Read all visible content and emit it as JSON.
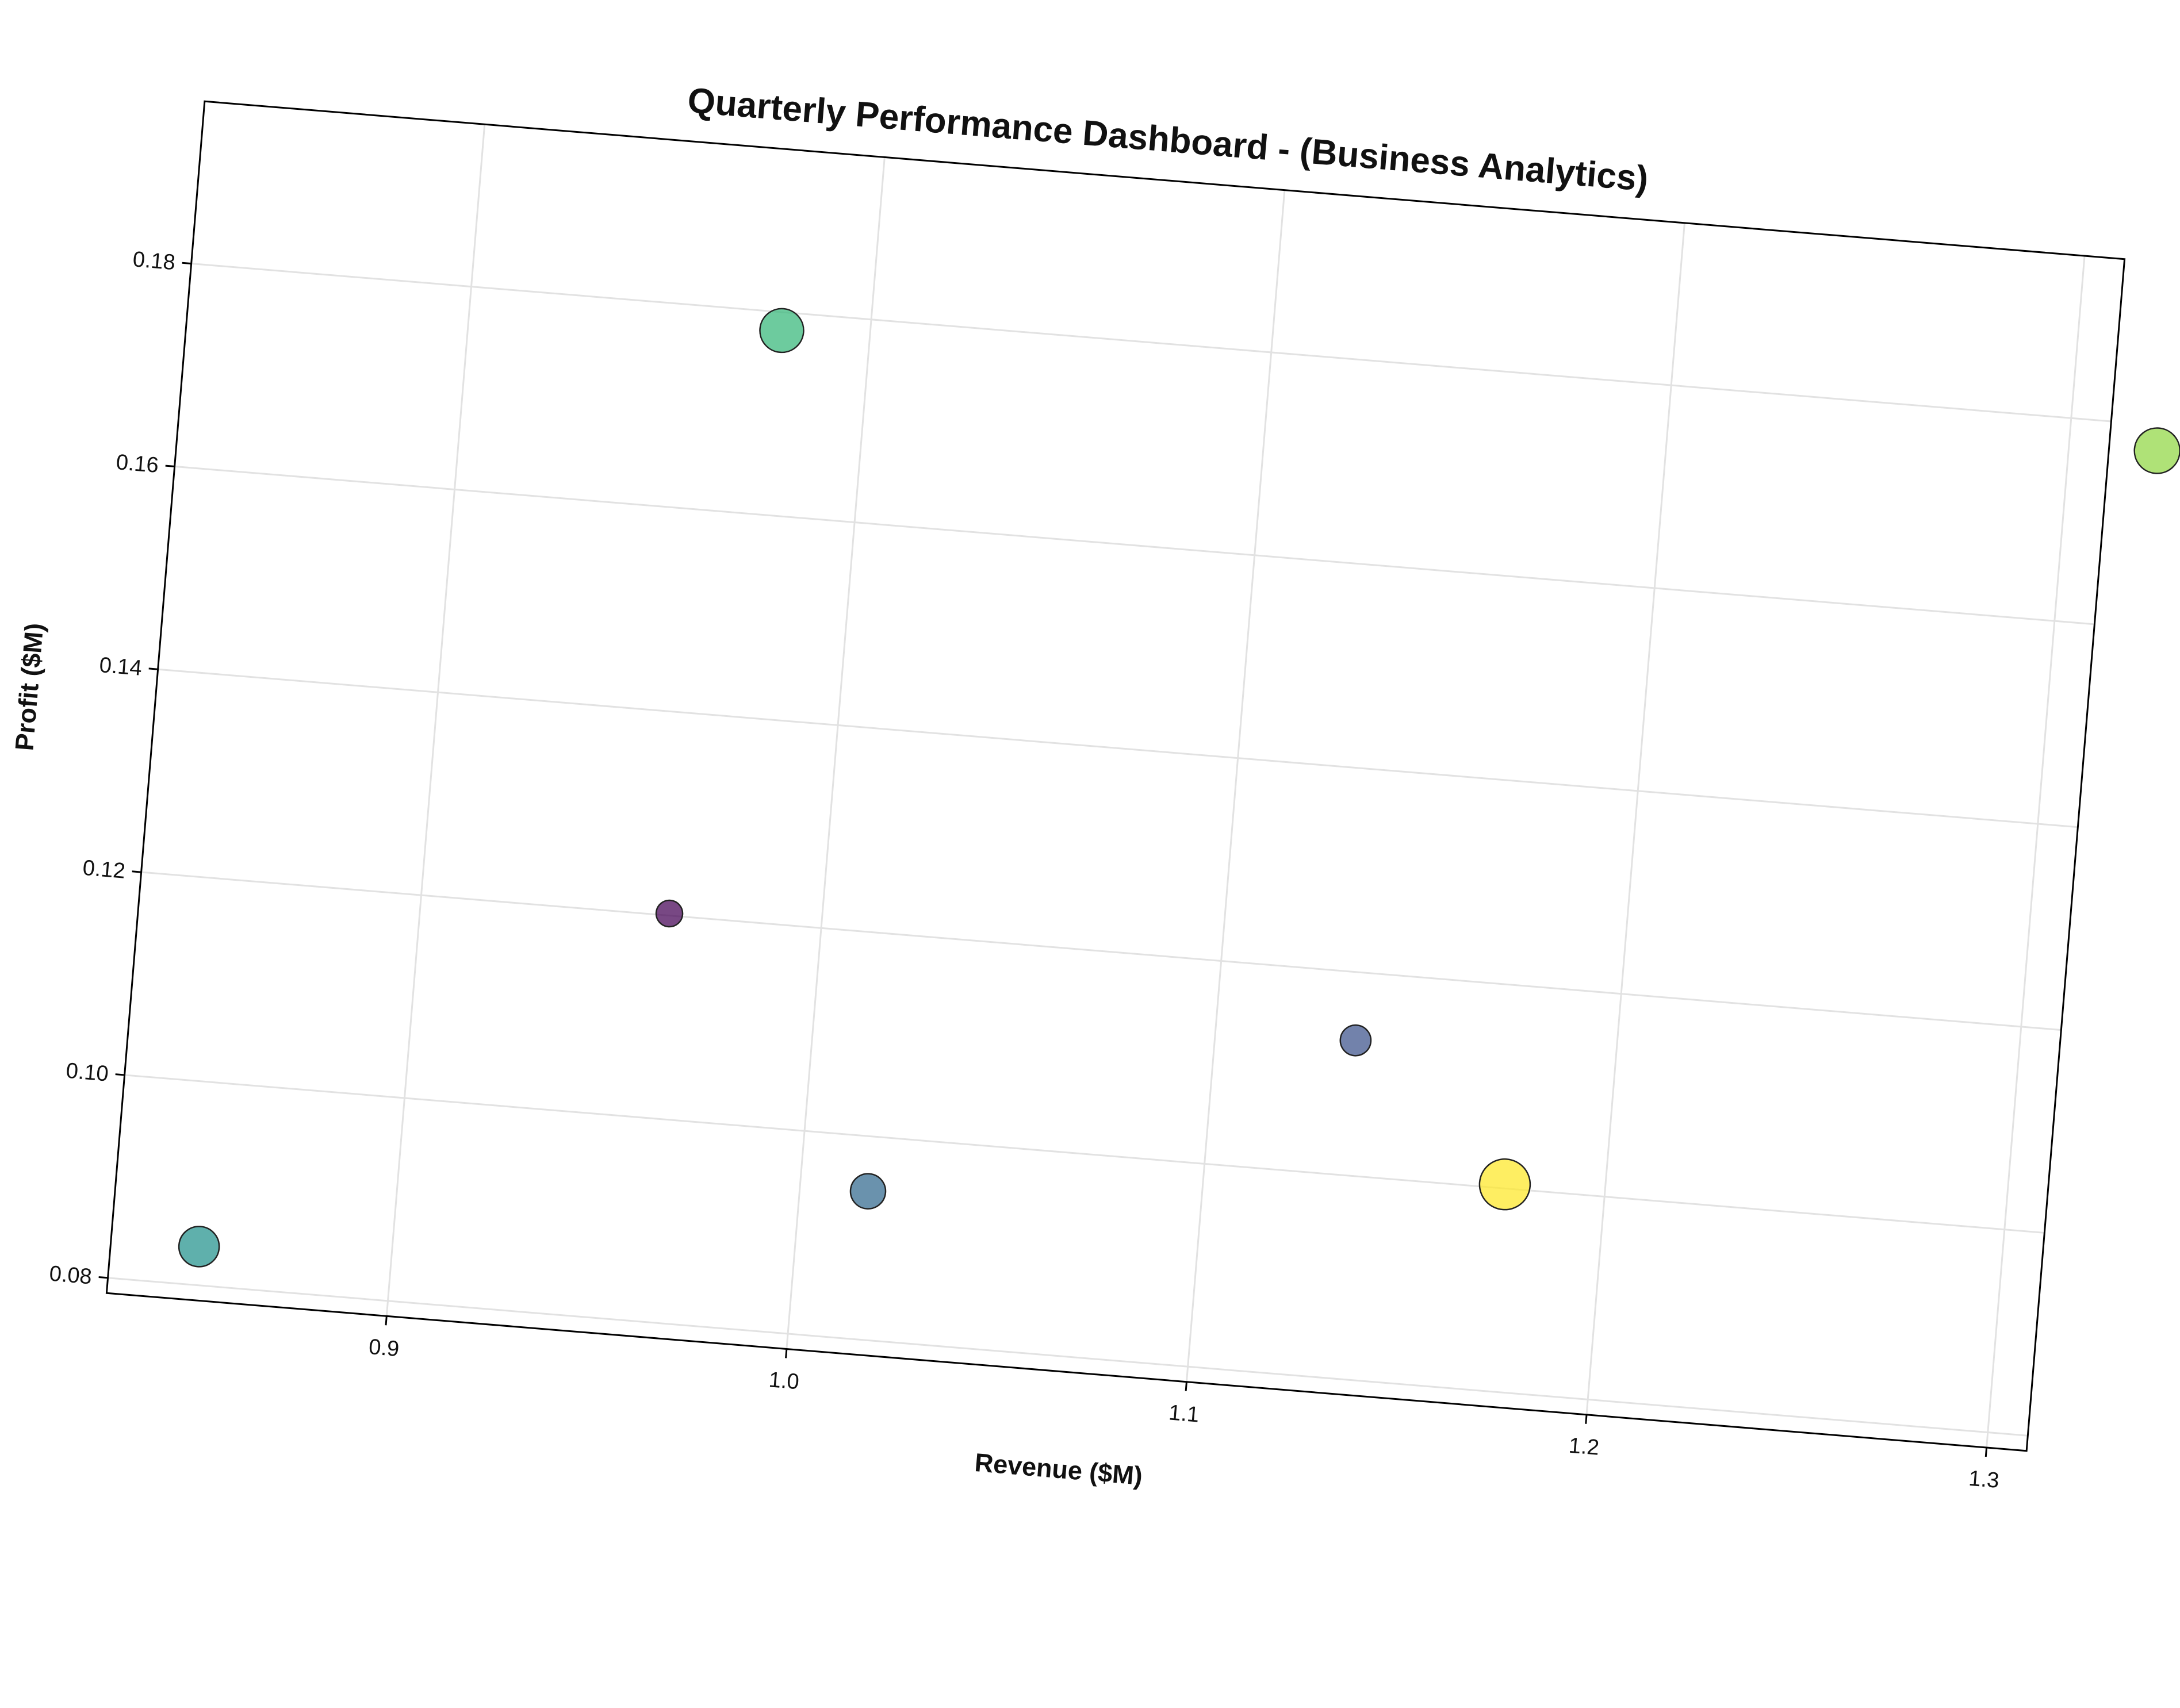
{
  "chart_data": {
    "type": "scatter",
    "title": "Quarterly Performance Dashboard - (Business Analytics)",
    "xlabel": "Revenue ($M)",
    "ylabel": "Profit ($M)",
    "xlim": [
      0.83,
      1.31
    ],
    "ylim": [
      0.0785,
      0.196
    ],
    "x_ticks": [
      "0.9",
      "1.0",
      "1.1",
      "1.2",
      "1.3"
    ],
    "y_ticks": [
      "0.08",
      "0.10",
      "0.12",
      "0.14",
      "0.16",
      "0.18"
    ],
    "grid": true,
    "colormap": "viridis",
    "points": [
      {
        "x": 0.962,
        "y": 0.1202,
        "size": 0.3,
        "color": "#440154"
      },
      {
        "x": 1.135,
        "y": 0.1133,
        "size": 0.42,
        "color": "#3b528b"
      },
      {
        "x": 1.017,
        "y": 0.0946,
        "size": 0.55,
        "color": "#31688e"
      },
      {
        "x": 0.852,
        "y": 0.0838,
        "size": 0.7,
        "color": "#21918c"
      },
      {
        "x": 0.978,
        "y": 0.1782,
        "size": 0.8,
        "color": "#35b779"
      },
      {
        "x": 1.322,
        "y": 0.1775,
        "size": 0.85,
        "color": "#90d743"
      },
      {
        "x": 1.175,
        "y": 0.1004,
        "size": 1.0,
        "color": "#fde725"
      }
    ]
  }
}
